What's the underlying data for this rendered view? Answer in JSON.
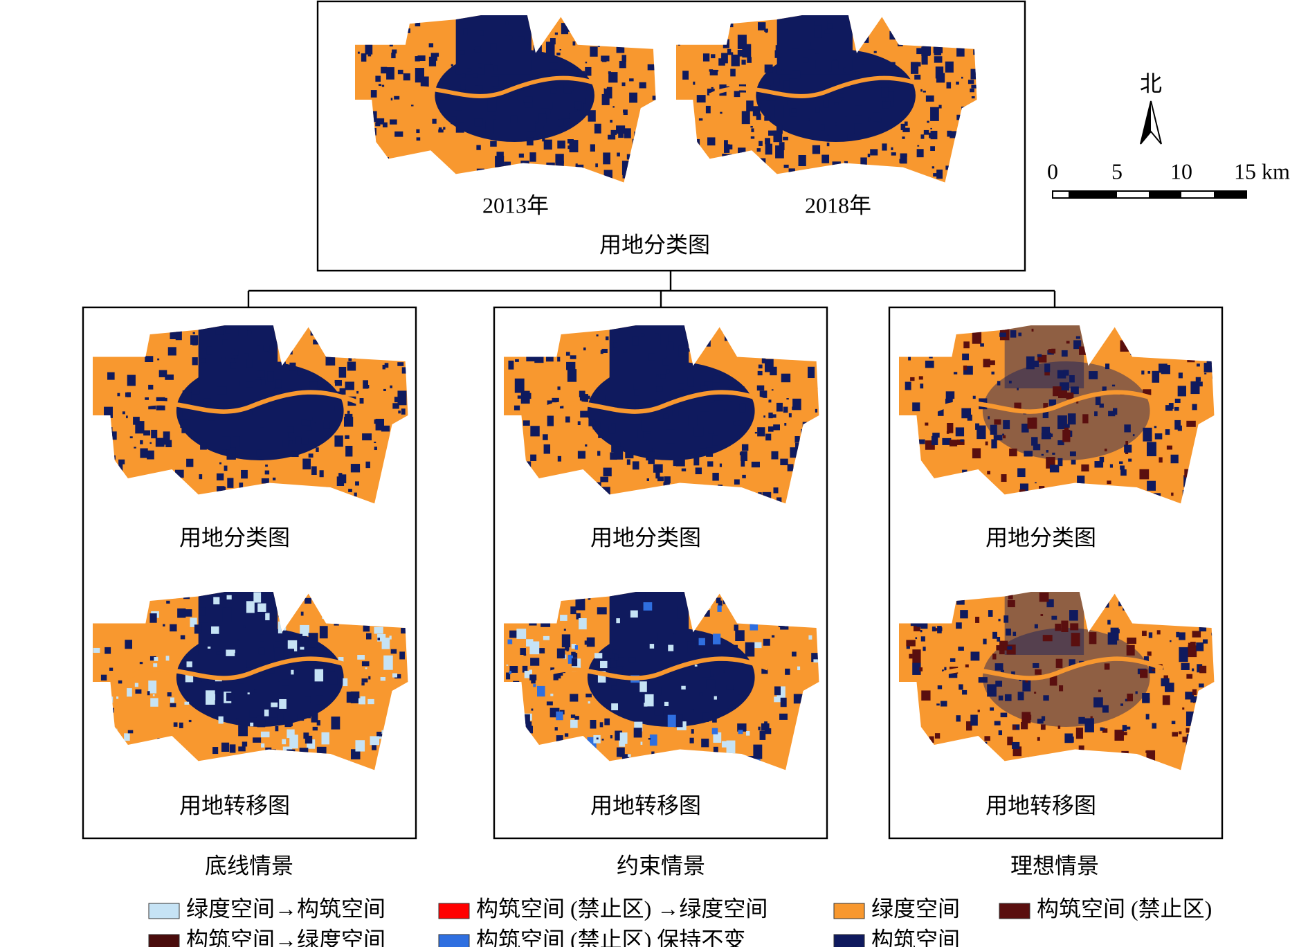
{
  "top": {
    "maps": [
      "2013年",
      "2018年"
    ],
    "caption": "用地分类图"
  },
  "north": "北",
  "scale_bar": [
    "0",
    "5",
    "10",
    "15 km"
  ],
  "panels": [
    {
      "name": "底线情景",
      "upper": "用地分类图",
      "lower": "用地转移图"
    },
    {
      "name": "约束情景",
      "upper": "用地分类图",
      "lower": "用地转移图"
    },
    {
      "name": "理想情景",
      "upper": "用地分类图",
      "lower": "用地转移图"
    }
  ],
  "legend": [
    {
      "name": "绿度空间→构筑空间",
      "color": "#c6e3f5"
    },
    {
      "name": "构筑空间 (禁止区) →绿度空间",
      "color": "#ff0000"
    },
    {
      "name": "绿度空间",
      "color": "#f8982f"
    },
    {
      "name": "构筑空间 (禁止区)",
      "color": "#5a0f0f"
    },
    {
      "name": "构筑空间→绿度空间",
      "color": "#4a0c0c"
    },
    {
      "name": "构筑空间 (禁止区) 保持不变",
      "color": "#2f6fe0"
    },
    {
      "name": "构筑空间",
      "color": "#0f1a5e"
    }
  ]
}
